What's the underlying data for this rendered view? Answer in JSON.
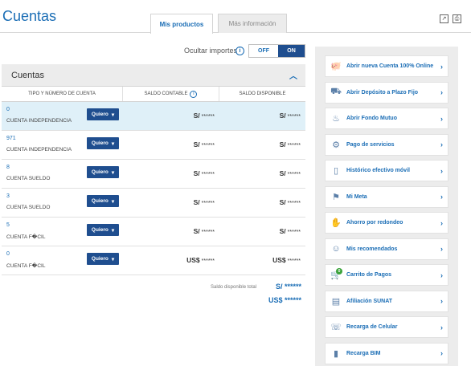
{
  "page": {
    "title": "Cuentas"
  },
  "tabs": [
    {
      "label": "Mis productos",
      "active": true
    },
    {
      "label": "Más información",
      "active": false
    }
  ],
  "header_icons": [
    "export-icon",
    "print-icon"
  ],
  "toggle": {
    "label": "Ocultar importes",
    "off_label": "OFF",
    "on_label": "ON",
    "state": "ON"
  },
  "panel": {
    "title": "Cuentas",
    "columns": [
      "TIPO Y NÚMERO DE CUENTA",
      "SALDO CONTABLE",
      "SALDO DISPONIBLE"
    ],
    "rows": [
      {
        "number": "0",
        "type": "CUENTA INDEPENDENCIA",
        "button": "Quiero",
        "currency1": "S/",
        "balance1": "******",
        "currency2": "S/",
        "balance2": "******",
        "highlight": true
      },
      {
        "number": "971",
        "type": "CUENTA INDEPENDENCIA",
        "button": "Quiero",
        "currency1": "S/",
        "balance1": "******",
        "currency2": "S/",
        "balance2": "******",
        "highlight": false
      },
      {
        "number": "8",
        "type": "CUENTA SUELDO",
        "button": "Quiero",
        "currency1": "S/",
        "balance1": "******",
        "currency2": "S/",
        "balance2": "******",
        "highlight": false
      },
      {
        "number": "3",
        "type": "CUENTA SUELDO",
        "button": "Quiero",
        "currency1": "S/",
        "balance1": "******",
        "currency2": "S/",
        "balance2": "******",
        "highlight": false
      },
      {
        "number": "5",
        "type": "CUENTA F�CIL",
        "button": "Quiero",
        "currency1": "S/",
        "balance1": "******",
        "currency2": "S/",
        "balance2": "******",
        "highlight": false
      },
      {
        "number": "0",
        "type": "CUENTA F�CIL",
        "button": "Quiero",
        "currency1": "US$",
        "balance1": "******",
        "currency2": "US$",
        "balance2": "******",
        "highlight": false
      }
    ],
    "total_label": "Saldo disponible total",
    "total_sol": "S/ ******",
    "total_usd": "US$ ******"
  },
  "sidebar": {
    "items": [
      {
        "label": "Abrir nueva Cuenta 100% Online",
        "icon": "piggy-bank-icon"
      },
      {
        "label": "Abrir Depósito a Plazo Fijo",
        "icon": "deposit-icon"
      },
      {
        "label": "Abrir Fondo Mutuo",
        "icon": "fund-icon"
      },
      {
        "label": "Pago de servicios",
        "icon": "services-icon"
      },
      {
        "label": "Histórico efectivo móvil",
        "icon": "mobile-icon"
      },
      {
        "label": "Mi Meta",
        "icon": "goal-icon"
      },
      {
        "label": "Ahorro por redondeo",
        "icon": "savings-icon"
      },
      {
        "label": "Mis recomendados",
        "icon": "recommend-icon"
      },
      {
        "label": "Carrito de Pagos",
        "icon": "cart-icon",
        "badge": "0"
      },
      {
        "label": "Afiliación SUNAT",
        "icon": "sunat-icon"
      },
      {
        "label": "Recarga de Celular",
        "icon": "phone-icon"
      },
      {
        "label": "Recarga BIM",
        "icon": "bim-icon"
      }
    ]
  },
  "colors": {
    "accent": "#1a6db5",
    "button": "#1f4e8f",
    "highlight_row": "#dff0f8",
    "sidebar_bg": "#ececec"
  }
}
